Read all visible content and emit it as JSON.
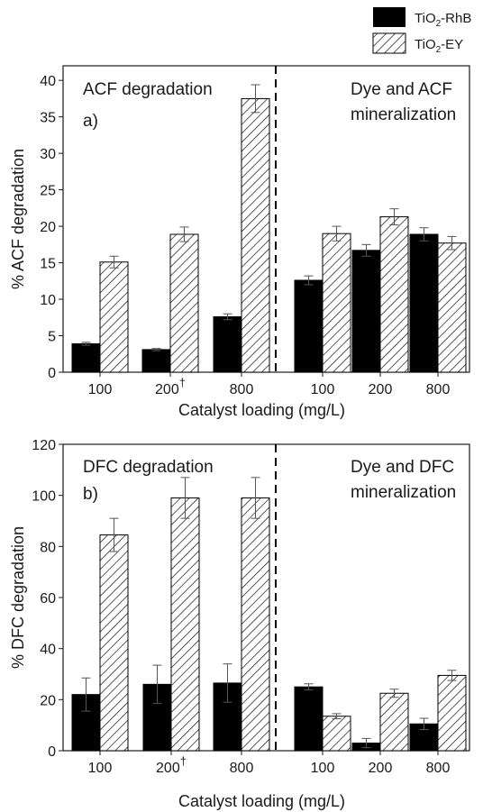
{
  "legend": [
    {
      "series": "TiO2-RhB",
      "label_main": "TiO",
      "label_sub": "2",
      "label_rest": "-RhB",
      "fill": "#000000"
    },
    {
      "series": "TiO2-EY",
      "label_main": "TiO",
      "label_sub": "2",
      "label_rest": "-EY",
      "fill": "hatch"
    }
  ],
  "colors": {
    "rhb": "#000000",
    "ey_hatch": "#000000",
    "background": "#ffffff"
  },
  "chart_data": [
    {
      "type": "bar",
      "panel_label": "a)",
      "ylabel": "% ACF degradation",
      "xlabel": "Catalyst loading (mg/L)",
      "ylim": [
        0,
        42
      ],
      "yticks": [
        0,
        5,
        10,
        15,
        20,
        25,
        30,
        35,
        40
      ],
      "categories": [
        "100",
        "200",
        "800",
        "100",
        "200",
        "800"
      ],
      "dagger_category_index": 1,
      "dagger": "†",
      "group_titles": [
        {
          "lines": [
            "ACF degradation"
          ]
        },
        {
          "lines": [
            "Dye and ACF",
            "mineralization"
          ]
        }
      ],
      "series": [
        {
          "name": "TiO2-RhB",
          "values": [
            3.9,
            3.1,
            7.6,
            12.6,
            16.7,
            18.9
          ],
          "errors": [
            0.2,
            0.15,
            0.4,
            0.6,
            0.8,
            0.9
          ]
        },
        {
          "name": "TiO2-EY",
          "values": [
            15.1,
            18.9,
            37.5,
            19.0,
            21.3,
            17.7
          ],
          "errors": [
            0.8,
            1.0,
            1.9,
            1.0,
            1.1,
            0.9
          ]
        }
      ]
    },
    {
      "type": "bar",
      "panel_label": "b)",
      "ylabel": "% DFC degradation",
      "xlabel": "Catalyst loading (mg/L)",
      "ylim": [
        0,
        120
      ],
      "yticks": [
        0,
        20,
        40,
        60,
        80,
        100,
        120
      ],
      "categories": [
        "100",
        "200",
        "800",
        "100",
        "200",
        "800"
      ],
      "dagger_category_index": 1,
      "dagger": "†",
      "group_titles": [
        {
          "lines": [
            "DFC degradation"
          ]
        },
        {
          "lines": [
            "Dye and DFC",
            "mineralization"
          ]
        }
      ],
      "series": [
        {
          "name": "TiO2-RhB",
          "values": [
            22.0,
            26.0,
            26.5,
            25.0,
            3.0,
            10.5
          ],
          "errors": [
            6.5,
            7.5,
            7.5,
            1.2,
            1.8,
            2.2
          ]
        },
        {
          "name": "TiO2-EY",
          "values": [
            84.5,
            99.0,
            99.0,
            13.5,
            22.5,
            29.5
          ],
          "errors": [
            6.5,
            8.0,
            8.0,
            1.0,
            1.6,
            2.0
          ]
        }
      ]
    }
  ]
}
